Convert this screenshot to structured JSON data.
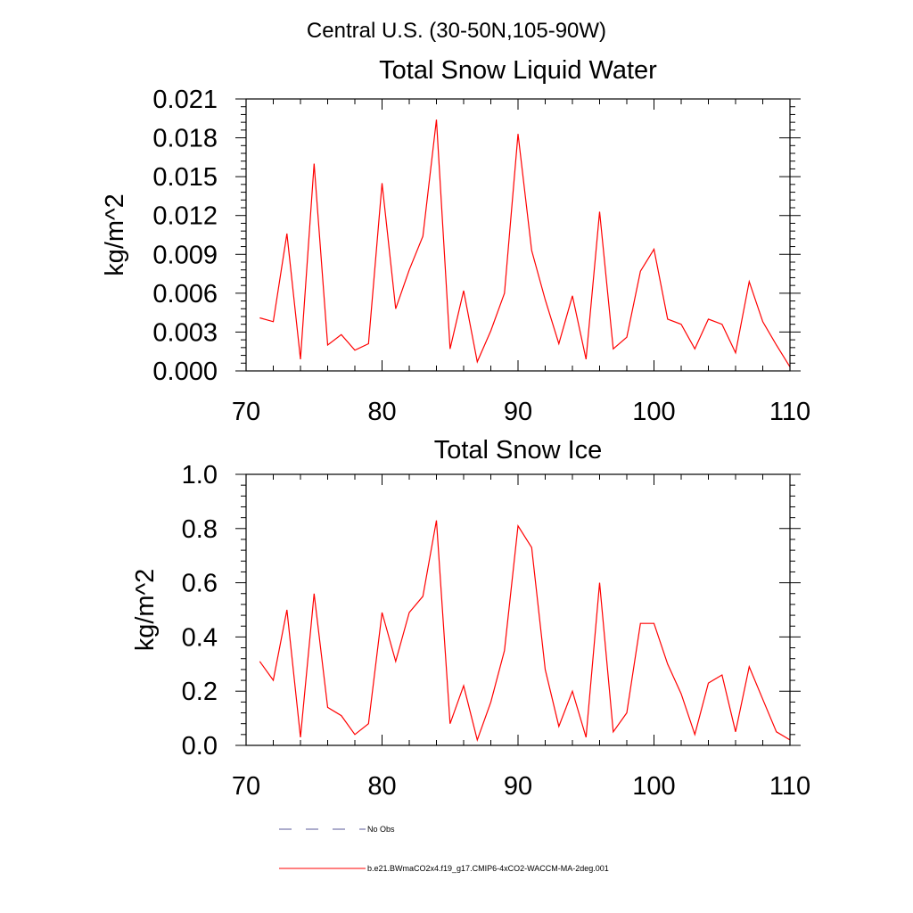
{
  "figure": {
    "title": "Central U.S. (30-50N,105-90W)"
  },
  "chart_data": [
    {
      "type": "line",
      "title": "Total Snow Liquid Water",
      "xlabel": "",
      "ylabel": "kg/m^2",
      "xlim": [
        70,
        110
      ],
      "ylim": [
        0.0,
        0.021
      ],
      "xticks": [
        70,
        80,
        90,
        100,
        110
      ],
      "xtick_labels": [
        "70",
        "80",
        "90",
        "100",
        "110"
      ],
      "yticks": [
        0.0,
        0.003,
        0.006,
        0.009,
        0.012,
        0.015,
        0.018,
        0.021
      ],
      "ytick_labels": [
        "0.000",
        "0.003",
        "0.006",
        "0.009",
        "0.012",
        "0.015",
        "0.018",
        "0.021"
      ],
      "grid": false,
      "x": [
        71,
        72,
        73,
        74,
        75,
        76,
        77,
        78,
        79,
        80,
        81,
        82,
        83,
        84,
        85,
        86,
        87,
        88,
        89,
        90,
        91,
        92,
        93,
        94,
        95,
        96,
        97,
        98,
        99,
        100,
        101,
        102,
        103,
        104,
        105,
        106,
        107,
        108,
        109,
        110
      ],
      "series": [
        {
          "name": "b.e21.BWmaCO2x4.f19_g17.CMIP6-4xCO2-WACCM-MA-2deg.001",
          "color": "#ff0000",
          "values": [
            0.0041,
            0.0038,
            0.0106,
            0.0009,
            0.016,
            0.002,
            0.0028,
            0.0016,
            0.0021,
            0.0145,
            0.0048,
            0.0078,
            0.0104,
            0.0194,
            0.0017,
            0.0062,
            0.0007,
            0.0031,
            0.006,
            0.0183,
            0.0093,
            0.0055,
            0.0021,
            0.0058,
            0.0009,
            0.0123,
            0.0017,
            0.0026,
            0.0077,
            0.0094,
            0.004,
            0.0036,
            0.0017,
            0.004,
            0.0036,
            0.0014,
            0.0069,
            0.0038,
            0.002,
            0.0003
          ]
        }
      ]
    },
    {
      "type": "line",
      "title": "Total Snow Ice",
      "xlabel": "",
      "ylabel": "kg/m^2",
      "xlim": [
        70,
        110
      ],
      "ylim": [
        0.0,
        1.0
      ],
      "xticks": [
        70,
        80,
        90,
        100,
        110
      ],
      "xtick_labels": [
        "70",
        "80",
        "90",
        "100",
        "110"
      ],
      "yticks": [
        0.0,
        0.2,
        0.4,
        0.6,
        0.8,
        1.0
      ],
      "ytick_labels": [
        "0.0",
        "0.2",
        "0.4",
        "0.6",
        "0.8",
        "1.0"
      ],
      "grid": false,
      "x": [
        71,
        72,
        73,
        74,
        75,
        76,
        77,
        78,
        79,
        80,
        81,
        82,
        83,
        84,
        85,
        86,
        87,
        88,
        89,
        90,
        91,
        92,
        93,
        94,
        95,
        96,
        97,
        98,
        99,
        100,
        101,
        102,
        103,
        104,
        105,
        106,
        107,
        108,
        109,
        110
      ],
      "series": [
        {
          "name": "b.e21.BWmaCO2x4.f19_g17.CMIP6-4xCO2-WACCM-MA-2deg.001",
          "color": "#ff0000",
          "values": [
            0.31,
            0.24,
            0.5,
            0.03,
            0.56,
            0.14,
            0.11,
            0.04,
            0.08,
            0.49,
            0.31,
            0.49,
            0.55,
            0.83,
            0.08,
            0.22,
            0.02,
            0.16,
            0.35,
            0.81,
            0.73,
            0.28,
            0.07,
            0.2,
            0.03,
            0.6,
            0.05,
            0.12,
            0.45,
            0.45,
            0.3,
            0.19,
            0.04,
            0.23,
            0.26,
            0.05,
            0.29,
            0.17,
            0.05,
            0.02
          ]
        }
      ]
    }
  ],
  "legend": {
    "placement": "bottom-left",
    "items": [
      {
        "label": "No Obs",
        "color": "#5a5a9a",
        "style": "dashed"
      },
      {
        "label": "b.e21.BWmaCO2x4.f19_g17.CMIP6-4xCO2-WACCM-MA-2deg.001",
        "color": "#ff0000",
        "style": "solid"
      }
    ]
  }
}
